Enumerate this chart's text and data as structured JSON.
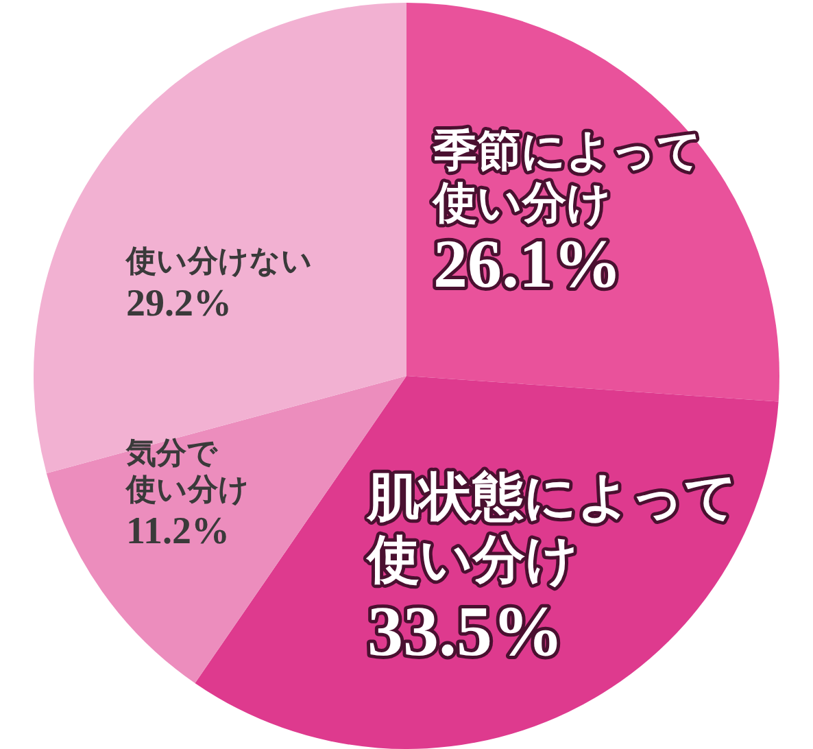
{
  "chart_data": {
    "type": "pie",
    "categories": [
      "季節によって使い分け",
      "肌状態によって使い分け",
      "気分で使い分け",
      "使い分けない"
    ],
    "values": [
      26.1,
      33.5,
      11.2,
      29.2
    ],
    "colors": [
      "#e9529b",
      "#de3a8e",
      "#ec8dbd",
      "#f2b1d2"
    ],
    "value_labels": [
      "26.1%",
      "33.5%",
      "11.2%",
      "29.2%"
    ],
    "legend": false
  }
}
